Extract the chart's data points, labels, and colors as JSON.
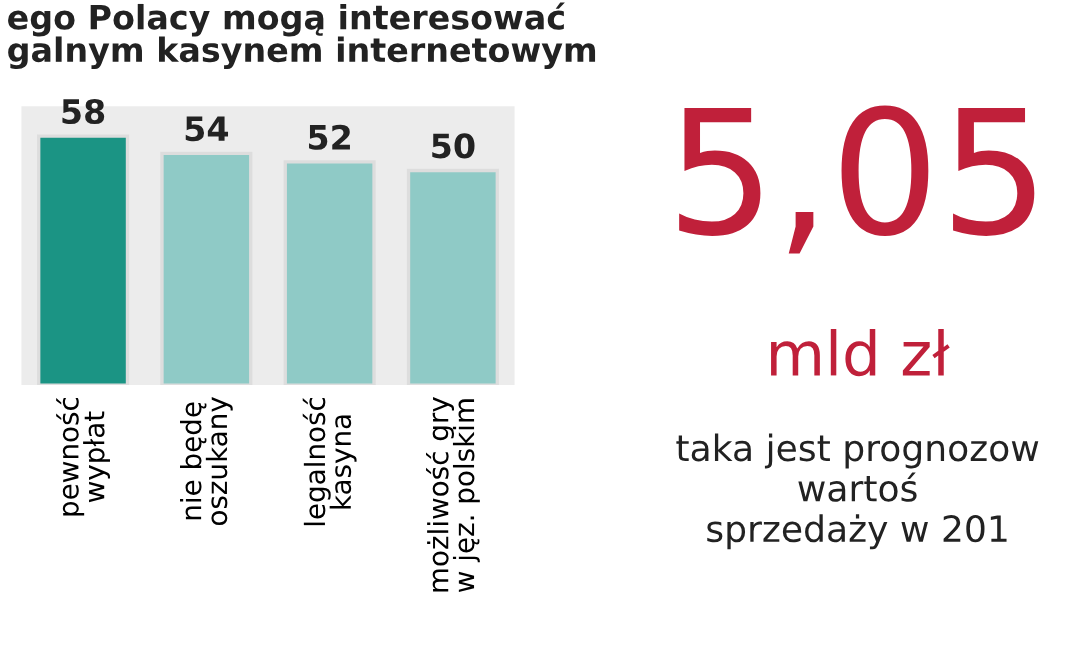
{
  "chart_data": {
    "type": "bar",
    "title": "ego Polacy mogą interesować\ngalnym kasynem internetowym",
    "categories": [
      "pewność\nwypłat",
      "nie będę\noszukany",
      "legalność\nkasyna",
      "możliwość gry\nw jęz. polskim"
    ],
    "values": [
      58,
      54,
      52,
      50
    ],
    "colors": [
      "#1b9484",
      "#8fcac6",
      "#8fcac6",
      "#8fcac6"
    ],
    "data_labels": true,
    "tick_labels": "x",
    "annotations": [
      "5,05",
      "mld zł",
      "taka jest prognozow\nwartoś\nsprzedaży w 201"
    ]
  }
}
